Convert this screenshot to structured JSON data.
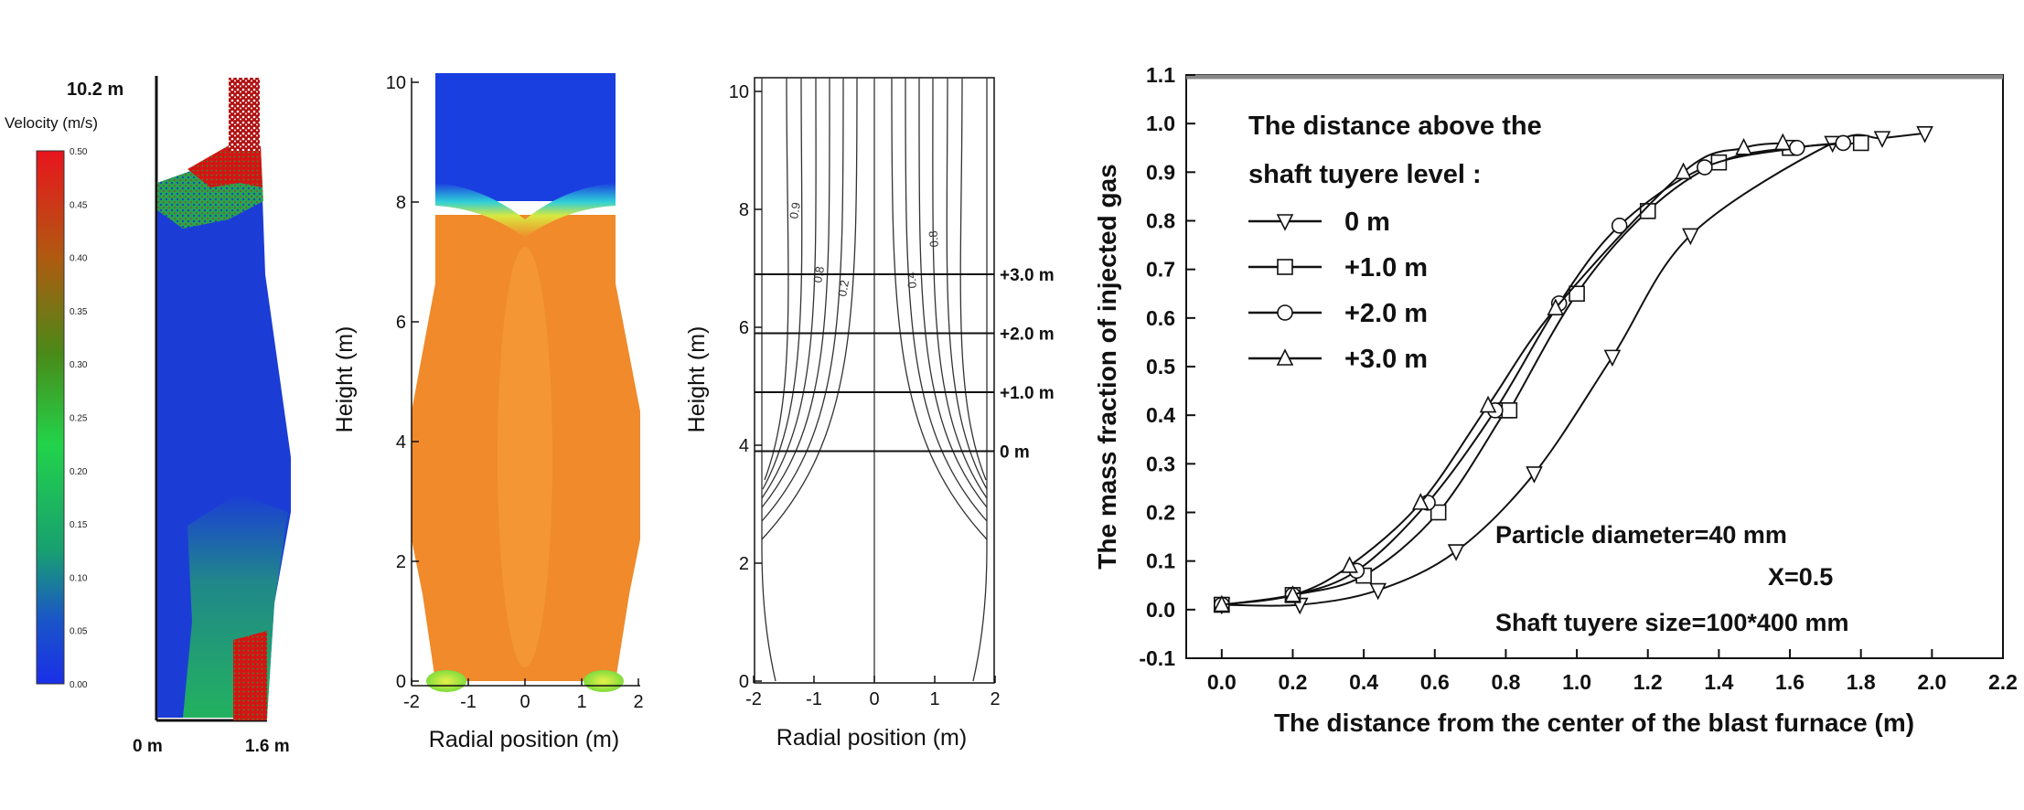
{
  "panel_a": {
    "height_label": "10.2 m",
    "colorbar_title": "Velocity (m/s)",
    "colorbar_ticks": [
      "0.50",
      "0.45",
      "0.40",
      "0.35",
      "0.30",
      "0.25",
      "0.20",
      "0.15",
      "0.10",
      "0.05",
      "0.00"
    ],
    "bottom_left_label": "0 m",
    "bottom_right_label": "1.6 m"
  },
  "panel_b": {
    "ylabel": "Height (m)",
    "xlabel": "Radial position (m)",
    "yticks": [
      "0",
      "2",
      "4",
      "6",
      "8",
      "10"
    ],
    "xticks": [
      "-2",
      "-1",
      "0",
      "1",
      "2"
    ],
    "colors": {
      "top": "#1a3fe0",
      "body": "#f08a2a",
      "nozzle": "#7fdc3c"
    }
  },
  "panel_c": {
    "ylabel": "Height (m)",
    "xlabel": "Radial position (m)",
    "yticks": [
      "0",
      "2",
      "4",
      "6",
      "8",
      "10"
    ],
    "xticks": [
      "-2",
      "-1",
      "0",
      "1",
      "2"
    ],
    "contour_labels": [
      "0.9",
      "0.8",
      "0.2",
      "0.4",
      "0.8"
    ],
    "levels": [
      {
        "label": "+3.0 m",
        "height": 6.9
      },
      {
        "label": "+2.0 m",
        "height": 5.9
      },
      {
        "label": "+1.0 m",
        "height": 4.9
      },
      {
        "label": "0 m",
        "height": 3.9
      }
    ]
  },
  "chart_data": {
    "type": "line",
    "xlabel": "The distance from the center of the blast furnace (m)",
    "ylabel": "The mass fraction of injected gas",
    "xlim": [
      -0.1,
      2.2
    ],
    "ylim": [
      -0.1,
      1.1
    ],
    "xticks": [
      "0.0",
      "0.2",
      "0.4",
      "0.6",
      "0.8",
      "1.0",
      "1.2",
      "1.4",
      "1.6",
      "1.8",
      "2.0",
      "2.2"
    ],
    "yticks": [
      "-0.1",
      "0.0",
      "0.1",
      "0.2",
      "0.3",
      "0.4",
      "0.5",
      "0.6",
      "0.7",
      "0.8",
      "0.9",
      "1.0",
      "1.1"
    ],
    "legend_title": [
      "The distance above the",
      "shaft tuyere level :"
    ],
    "legend_position": "top-left",
    "annotations": [
      "Particle diameter=40 mm",
      "X=0.5",
      "Shaft tuyere size=100*400 mm"
    ],
    "series": [
      {
        "name": "0 m",
        "marker": "triangle-down",
        "x": [
          0.0,
          0.22,
          0.44,
          0.66,
          0.88,
          1.1,
          1.32,
          1.72,
          1.86,
          1.98
        ],
        "y": [
          0.01,
          0.01,
          0.04,
          0.12,
          0.28,
          0.52,
          0.77,
          0.96,
          0.97,
          0.98
        ]
      },
      {
        "name": "+1.0 m",
        "marker": "square",
        "x": [
          0.0,
          0.2,
          0.4,
          0.61,
          0.8,
          0.81,
          1.0,
          1.2,
          1.4,
          1.6,
          1.8
        ],
        "y": [
          0.01,
          0.03,
          0.07,
          0.2,
          0.41,
          0.41,
          0.65,
          0.82,
          0.92,
          0.95,
          0.96
        ]
      },
      {
        "name": "+2.0 m",
        "marker": "circle",
        "x": [
          0.0,
          0.2,
          0.38,
          0.58,
          0.77,
          0.95,
          1.12,
          1.36,
          1.62,
          1.75
        ],
        "y": [
          0.01,
          0.03,
          0.08,
          0.22,
          0.41,
          0.63,
          0.79,
          0.91,
          0.95,
          0.96
        ]
      },
      {
        "name": "+3.0 m",
        "marker": "triangle-up",
        "x": [
          0.0,
          0.2,
          0.36,
          0.56,
          0.75,
          0.94,
          1.3,
          1.47,
          1.58
        ],
        "y": [
          0.01,
          0.03,
          0.09,
          0.22,
          0.42,
          0.62,
          0.9,
          0.95,
          0.96
        ]
      }
    ]
  }
}
